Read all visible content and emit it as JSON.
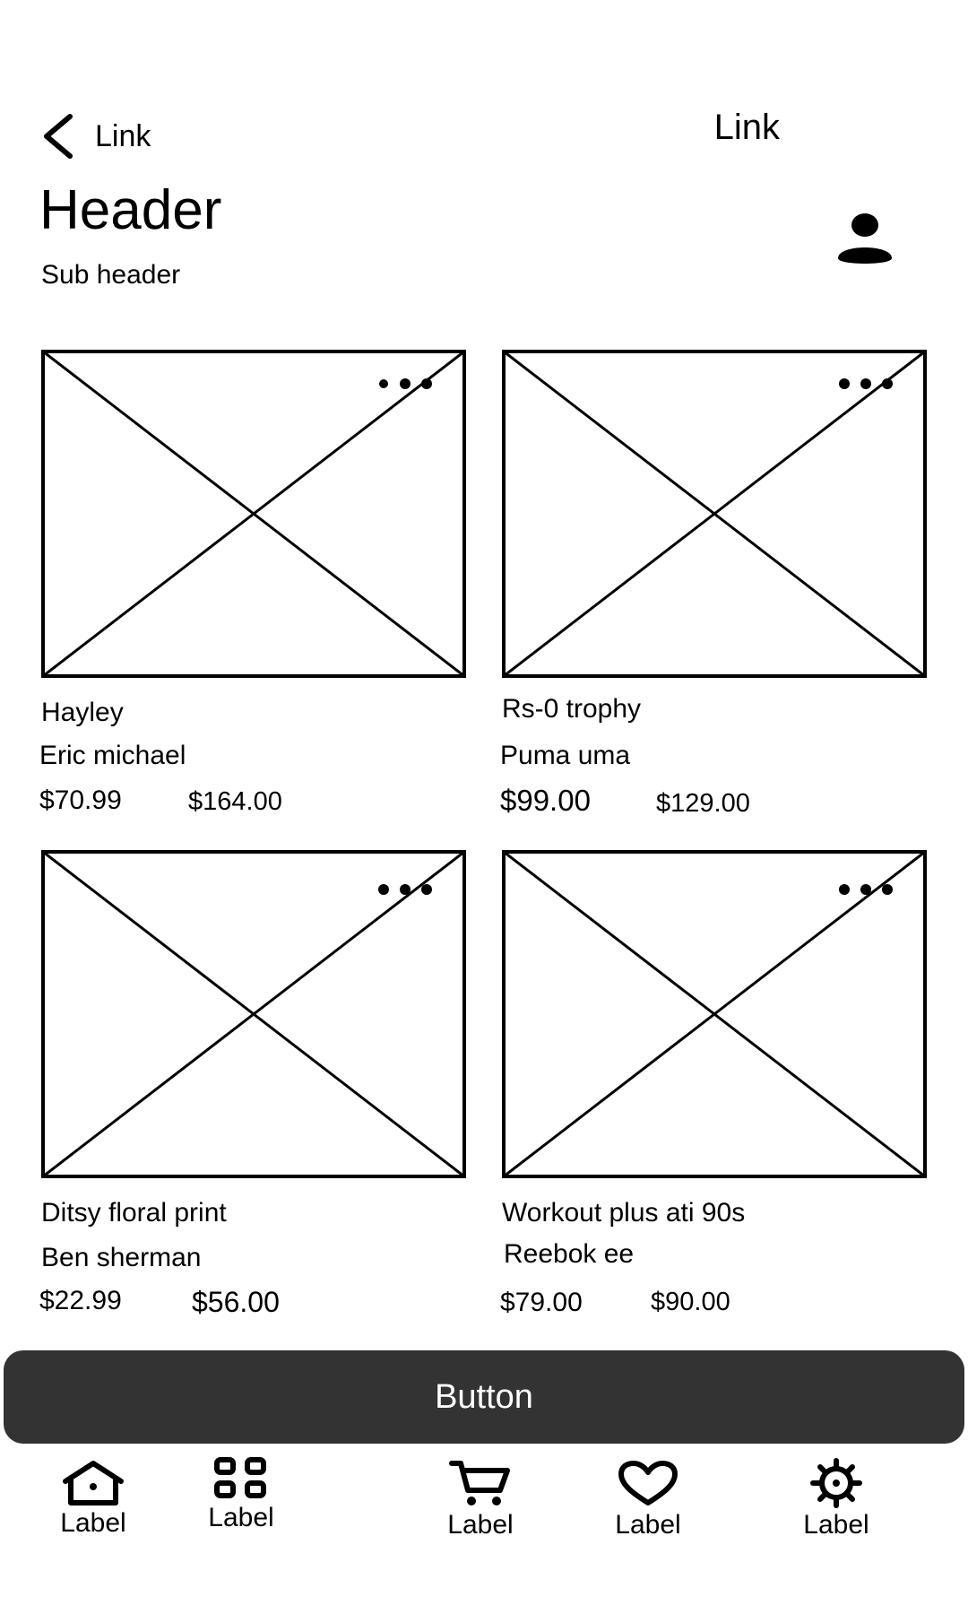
{
  "top_nav": {
    "back_label": "Link",
    "right_label": "Link"
  },
  "header": {
    "title": "Header",
    "subtitle": "Sub header"
  },
  "products": [
    {
      "name": "Hayley",
      "brand": "Eric michael",
      "sale_price": "$70.99",
      "original_price": "$164.00"
    },
    {
      "name": "Rs-0 trophy",
      "brand": "Puma uma",
      "sale_price": "$99.00",
      "original_price": "$129.00"
    },
    {
      "name": "Ditsy floral print",
      "brand": "Ben sherman",
      "sale_price": "$22.99",
      "original_price": "$56.00"
    },
    {
      "name": "Workout plus ati 90s",
      "brand": "Reebok ee",
      "sale_price": "$79.00",
      "original_price": "$90.00"
    }
  ],
  "primary_button": {
    "label": "Button"
  },
  "tabbar": {
    "tabs": [
      {
        "icon": "home-icon",
        "label": "Label"
      },
      {
        "icon": "grid-icon",
        "label": "Label"
      },
      {
        "icon": "cart-icon",
        "label": "Label"
      },
      {
        "icon": "heart-icon",
        "label": "Label"
      },
      {
        "icon": "gear-icon",
        "label": "Label"
      }
    ]
  }
}
